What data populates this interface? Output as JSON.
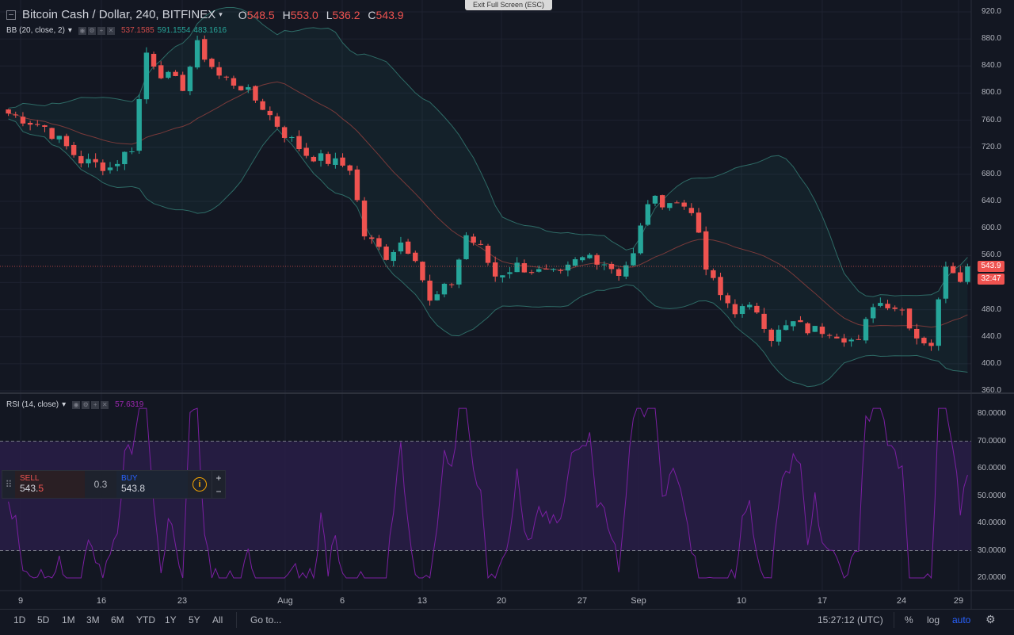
{
  "header": {
    "title": "Bitcoin Cash / Dollar, 240, BITFINEX",
    "open_key": "O",
    "open_val": "548.5",
    "high_key": "H",
    "high_val": "553.0",
    "low_key": "L",
    "low_val": "536.2",
    "close_key": "C",
    "close_val": "543.9",
    "exit_fullscreen": "Exit Full Screen (ESC)"
  },
  "bb": {
    "label": "BB (20, close, 2)",
    "upper": "537.1585",
    "middle": "591.1554",
    "lower": "483.1616"
  },
  "rsi": {
    "label": "RSI (14, close)",
    "value": "57.6319"
  },
  "price_axis": [
    "920.0",
    "880.0",
    "840.0",
    "800.0",
    "760.0",
    "720.0",
    "680.0",
    "640.0",
    "600.0",
    "560.0",
    "520.0",
    "480.0",
    "440.0",
    "400.0",
    "360.0"
  ],
  "current_price": "543.9",
  "countdown": "32:47",
  "rsi_axis": [
    "80.0000",
    "70.0000",
    "60.0000",
    "50.0000",
    "40.0000",
    "30.0000",
    "20.0000"
  ],
  "date_axis": [
    "9",
    "16",
    "23",
    "Aug",
    "6",
    "13",
    "20",
    "27",
    "Sep",
    "10",
    "17",
    "24",
    "29"
  ],
  "trade_panel": {
    "sell_label": "SELL",
    "sell_price_main": "543.",
    "sell_price_hl": "5",
    "spread": "0.3",
    "buy_label": "BUY",
    "buy_price": "543.8",
    "info_icon": "i",
    "plus": "+",
    "minus": "−"
  },
  "bottom_bar": {
    "ranges": [
      "1D",
      "5D",
      "1M",
      "3M",
      "6M",
      "YTD",
      "1Y",
      "5Y",
      "All"
    ],
    "goto": "Go to...",
    "time": "15:27:12 (UTC)",
    "percent": "%",
    "log": "log",
    "auto": "auto"
  },
  "colors": {
    "background": "#131722",
    "bull": "#26a69a",
    "bear": "#ef5350",
    "rsi_line": "#7b1fa2",
    "rsi_band": "#2a1e4a",
    "auto_active": "#2962ff"
  },
  "chart_data": [
    {
      "type": "candlestick",
      "title": "Bitcoin Cash / Dollar, 240, BITFINEX",
      "xlabel": "",
      "ylabel": "",
      "ylim": [
        360,
        920
      ],
      "x_ticks": [
        "9",
        "16",
        "23",
        "Aug",
        "6",
        "13",
        "20",
        "27",
        "Sep",
        "10",
        "17",
        "24",
        "29"
      ],
      "close_path": [
        [
          0,
          770
        ],
        [
          5,
          750
        ],
        [
          10,
          700
        ],
        [
          14,
          690
        ],
        [
          17,
          720
        ],
        [
          19,
          860
        ],
        [
          21,
          830
        ],
        [
          24,
          810
        ],
        [
          26,
          870
        ],
        [
          29,
          825
        ],
        [
          32,
          810
        ],
        [
          35,
          780
        ],
        [
          38,
          740
        ],
        [
          41,
          710
        ],
        [
          44,
          700
        ],
        [
          47,
          690
        ],
        [
          49,
          590
        ],
        [
          52,
          560
        ],
        [
          54,
          580
        ],
        [
          56,
          560
        ],
        [
          58,
          490
        ],
        [
          61,
          520
        ],
        [
          63,
          590
        ],
        [
          65,
          570
        ],
        [
          67,
          530
        ],
        [
          70,
          545
        ],
        [
          73,
          535
        ],
        [
          76,
          530
        ],
        [
          78,
          550
        ],
        [
          80,
          560
        ],
        [
          82,
          550
        ],
        [
          84,
          535
        ],
        [
          86,
          560
        ],
        [
          88,
          640
        ],
        [
          91,
          640
        ],
        [
          94,
          630
        ],
        [
          96,
          540
        ],
        [
          98,
          500
        ],
        [
          100,
          480
        ],
        [
          103,
          480
        ],
        [
          105,
          440
        ],
        [
          108,
          460
        ],
        [
          110,
          450
        ],
        [
          113,
          450
        ],
        [
          115,
          440
        ],
        [
          117,
          430
        ],
        [
          119,
          490
        ],
        [
          121,
          490
        ],
        [
          123,
          480
        ],
        [
          125,
          440
        ],
        [
          127,
          430
        ],
        [
          129,
          550
        ],
        [
          131,
          530
        ],
        [
          132,
          543.9
        ]
      ],
      "bollinger": {
        "period": 20,
        "std": 2,
        "upper": 537.1585,
        "middle": 591.1554,
        "lower": 483.1616
      }
    },
    {
      "type": "line",
      "title": "RSI (14, close)",
      "ylim": [
        20,
        80
      ],
      "bands": [
        30,
        70
      ],
      "last": 57.6319
    }
  ]
}
